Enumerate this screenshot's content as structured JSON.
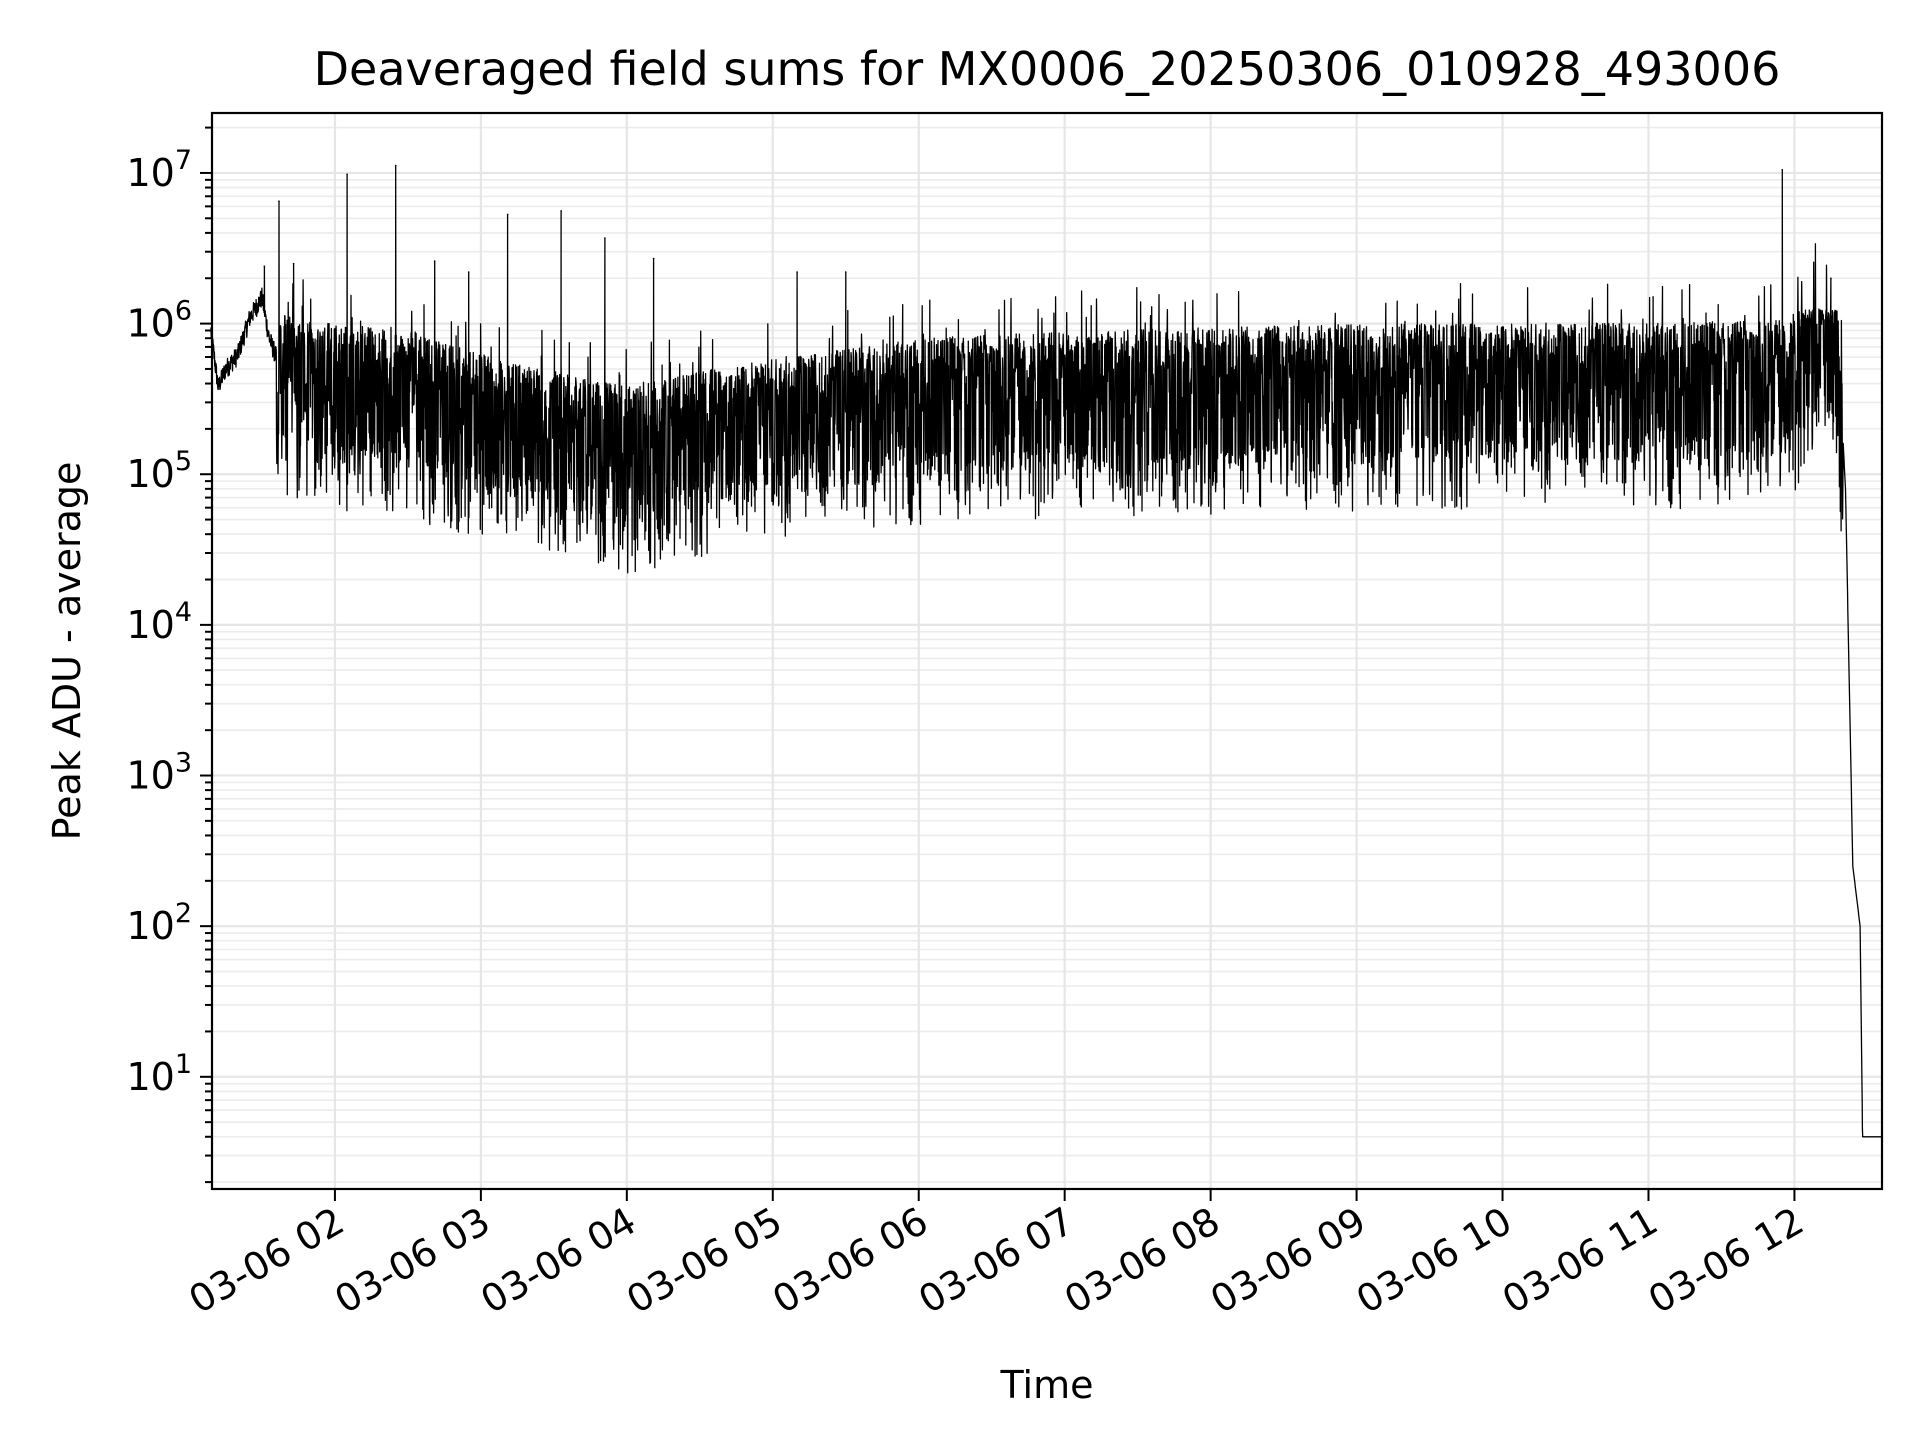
{
  "chart_data": {
    "type": "line",
    "title": "Deaveraged field sums for MX0006_20250306_010928_493006",
    "xlabel": "Time",
    "ylabel": "Peak ADU - average",
    "y_scale": "log",
    "ylim": [
      1.8,
      25000000
    ],
    "xlim": [
      "2025-03-06 01:09:28",
      "2025-03-06 12:36:00"
    ],
    "grid": true,
    "grid_minor_y": true,
    "x_ticks": [
      {
        "value": "2025-03-06 02:00",
        "label": "03-06 02"
      },
      {
        "value": "2025-03-06 03:00",
        "label": "03-06 03"
      },
      {
        "value": "2025-03-06 04:00",
        "label": "03-06 04"
      },
      {
        "value": "2025-03-06 05:00",
        "label": "03-06 05"
      },
      {
        "value": "2025-03-06 06:00",
        "label": "03-06 06"
      },
      {
        "value": "2025-03-06 07:00",
        "label": "03-06 07"
      },
      {
        "value": "2025-03-06 08:00",
        "label": "03-06 08"
      },
      {
        "value": "2025-03-06 09:00",
        "label": "03-06 09"
      },
      {
        "value": "2025-03-06 10:00",
        "label": "03-06 10"
      },
      {
        "value": "2025-03-06 11:00",
        "label": "03-06 11"
      },
      {
        "value": "2025-03-06 12:00",
        "label": "03-06 12"
      }
    ],
    "y_ticks": [
      {
        "value": 10,
        "base": "10",
        "exp": "1"
      },
      {
        "value": 100,
        "base": "10",
        "exp": "2"
      },
      {
        "value": 1000,
        "base": "10",
        "exp": "3"
      },
      {
        "value": 10000,
        "base": "10",
        "exp": "4"
      },
      {
        "value": 100000,
        "base": "10",
        "exp": "5"
      },
      {
        "value": 1000000,
        "base": "10",
        "exp": "6"
      },
      {
        "value": 10000000,
        "base": "10",
        "exp": "7"
      }
    ],
    "series": [
      {
        "color": "#000000",
        "x": [
          "2025-03-06 01:09",
          "2025-03-06 01:12",
          "2025-03-06 01:15",
          "2025-03-06 01:20",
          "2025-03-06 01:25",
          "2025-03-06 01:30",
          "2025-03-06 01:33",
          "2025-03-06 01:36",
          "2025-03-06 01:45",
          "2025-03-06 02:00",
          "2025-03-06 02:30",
          "2025-03-06 03:00",
          "2025-03-06 03:30",
          "2025-03-06 04:00",
          "2025-03-06 04:30",
          "2025-03-06 05:00",
          "2025-03-06 05:30",
          "2025-03-06 06:00",
          "2025-03-06 07:00",
          "2025-03-06 08:00",
          "2025-03-06 09:00",
          "2025-03-06 10:00",
          "2025-03-06 11:00",
          "2025-03-06 11:55",
          "2025-03-06 12:10",
          "2025-03-06 12:18",
          "2025-03-06 12:21",
          "2025-03-06 12:24",
          "2025-03-06 12:27",
          "2025-03-06 12:28",
          "2025-03-06 12:36"
        ],
        "y": [
          900000,
          380000,
          500000,
          620000,
          1100000,
          1500000,
          800000,
          600000,
          500000,
          480000,
          420000,
          300000,
          230000,
          180000,
          230000,
          280000,
          320000,
          380000,
          420000,
          450000,
          470000,
          480000,
          480000,
          500000,
          1000000,
          700000,
          80000,
          250,
          100,
          4,
          4
        ],
        "spikes": [
          {
            "x": "2025-03-06 01:31",
            "y": 2400000
          },
          {
            "x": "2025-03-06 01:37",
            "y": 6500000
          },
          {
            "x": "2025-03-06 01:43",
            "y": 2500000
          },
          {
            "x": "2025-03-06 02:05",
            "y": 9800000
          },
          {
            "x": "2025-03-06 02:25",
            "y": 11200000
          },
          {
            "x": "2025-03-06 02:41",
            "y": 2600000
          },
          {
            "x": "2025-03-06 02:55",
            "y": 2200000
          },
          {
            "x": "2025-03-06 03:11",
            "y": 5300000
          },
          {
            "x": "2025-03-06 03:33",
            "y": 5600000
          },
          {
            "x": "2025-03-06 03:51",
            "y": 3700000
          },
          {
            "x": "2025-03-06 04:11",
            "y": 2700000
          },
          {
            "x": "2025-03-06 05:10",
            "y": 2200000
          },
          {
            "x": "2025-03-06 05:30",
            "y": 2200000
          },
          {
            "x": "2025-03-06 11:55",
            "y": 10500000
          },
          {
            "x": "2025-03-06 12:15",
            "y": 2000000
          }
        ]
      }
    ]
  }
}
